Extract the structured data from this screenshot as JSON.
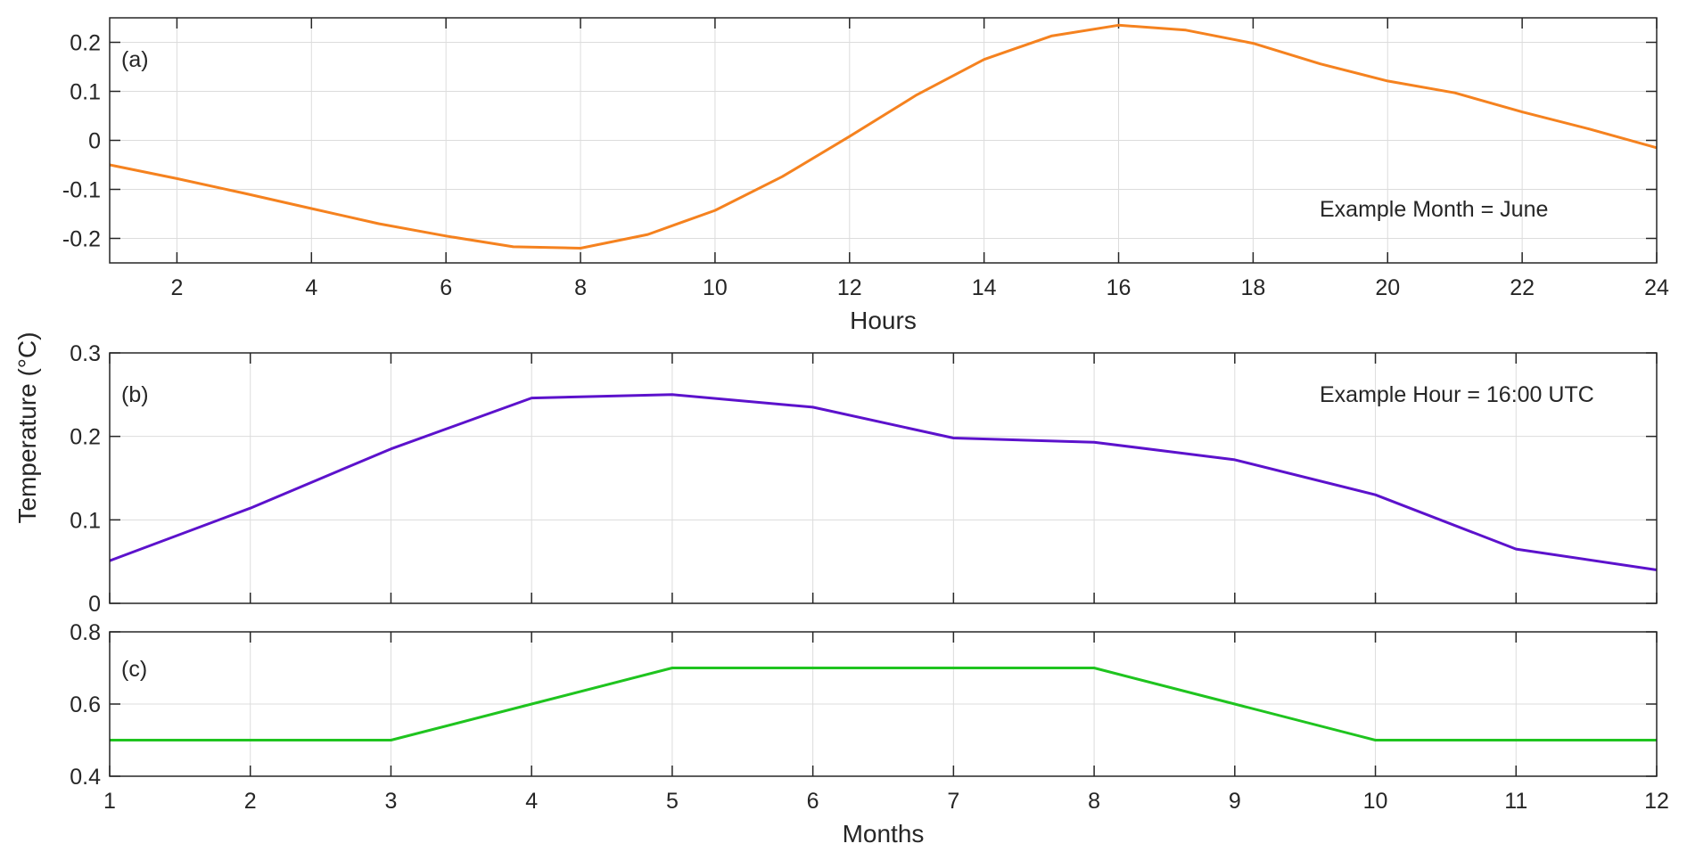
{
  "ylabel": "Temperature (°C)",
  "chart_data": [
    {
      "type": "line",
      "panel_tag": "(a)",
      "annotation": "Example Month = June",
      "xlabel": "Hours",
      "ylabel": "",
      "xlim": [
        1,
        24
      ],
      "ylim": [
        -0.25,
        0.25
      ],
      "xticks": [
        2,
        4,
        6,
        8,
        10,
        12,
        14,
        16,
        18,
        20,
        22,
        24
      ],
      "yticks": [
        -0.2,
        -0.1,
        0,
        0.1,
        0.2
      ],
      "ytick_labels": [
        "-0.2",
        "-0.1",
        "0",
        "0.1",
        "0.2"
      ],
      "grid": true,
      "series": [
        {
          "color": "#f5821f",
          "x": [
            1,
            2,
            3,
            4,
            5,
            6,
            7,
            8,
            9,
            10,
            11,
            12,
            13,
            14,
            15,
            16,
            17,
            18,
            19,
            20,
            21,
            22,
            23,
            24
          ],
          "y": [
            -0.05,
            -0.078,
            -0.108,
            -0.139,
            -0.17,
            -0.195,
            -0.217,
            -0.22,
            -0.192,
            -0.143,
            -0.074,
            0.008,
            0.093,
            0.165,
            0.213,
            0.235,
            0.225,
            0.198,
            0.156,
            0.121,
            0.097,
            0.058,
            0.023,
            -0.015
          ]
        }
      ]
    },
    {
      "type": "line",
      "panel_tag": "(b)",
      "annotation": "Example Hour = 16:00 UTC",
      "xlabel": "",
      "ylabel": "",
      "xlim": [
        1,
        12
      ],
      "ylim": [
        0,
        0.3
      ],
      "xticks": [
        1,
        2,
        3,
        4,
        5,
        6,
        7,
        8,
        9,
        10,
        11,
        12
      ],
      "yticks": [
        0,
        0.1,
        0.2,
        0.3
      ],
      "ytick_labels": [
        "0",
        "0.1",
        "0.2",
        "0.3"
      ],
      "grid": true,
      "series": [
        {
          "color": "#5c12cc",
          "x": [
            1,
            2,
            3,
            4,
            5,
            6,
            7,
            8,
            9,
            10,
            11,
            12
          ],
          "y": [
            0.051,
            0.114,
            0.185,
            0.246,
            0.25,
            0.235,
            0.198,
            0.193,
            0.172,
            0.13,
            0.065,
            0.04
          ]
        }
      ]
    },
    {
      "type": "line",
      "panel_tag": "(c)",
      "xlabel": "Months",
      "ylabel": "",
      "xlim": [
        1,
        12
      ],
      "ylim": [
        0.4,
        0.8
      ],
      "xticks": [
        1,
        2,
        3,
        4,
        5,
        6,
        7,
        8,
        9,
        10,
        11,
        12
      ],
      "xtick_labels": [
        "1",
        "2",
        "3",
        "4",
        "5",
        "6",
        "7",
        "8",
        "9",
        "10",
        "11",
        "12"
      ],
      "yticks": [
        0.4,
        0.6,
        0.8
      ],
      "ytick_labels": [
        "0.4",
        "0.6",
        "0.8"
      ],
      "grid": true,
      "series": [
        {
          "color": "#1fc41f",
          "x": [
            1,
            2,
            3,
            4,
            5,
            6,
            7,
            8,
            9,
            10,
            11,
            12
          ],
          "y": [
            0.5,
            0.5,
            0.5,
            0.6,
            0.7,
            0.7,
            0.7,
            0.7,
            0.6,
            0.5,
            0.5,
            0.5
          ]
        }
      ]
    }
  ]
}
